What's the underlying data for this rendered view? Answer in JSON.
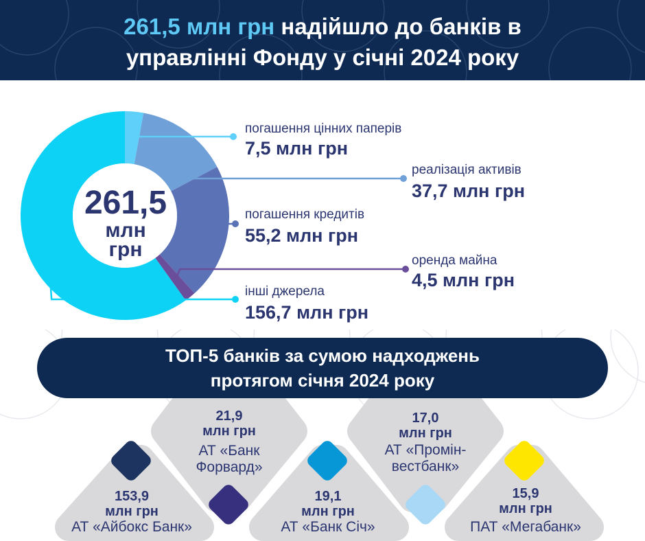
{
  "header": {
    "highlight": "261,5 млн грн",
    "title_rest_line1": "надійшло до банків в",
    "title_line2": "управлінні Фонду у січні 2024 року"
  },
  "center": {
    "value": "261,5",
    "unit_line1": "млн",
    "unit_line2": "грн"
  },
  "chart_data": {
    "type": "pie",
    "total": 261.5,
    "unit": "млн грн",
    "slices": [
      {
        "label": "погашення цінних паперів",
        "value": 7.5,
        "value_text": "7,5 млн грн",
        "color": "#5ed0fa"
      },
      {
        "label": "реалізація активів",
        "value": 37.7,
        "value_text": "37,7 млн грн",
        "color": "#6fa0d8"
      },
      {
        "label": "погашення кредитів",
        "value": 55.2,
        "value_text": "55,2 млн грн",
        "color": "#5c72b6"
      },
      {
        "label": "оренда майна",
        "value": 4.5,
        "value_text": "4,5 млн грн",
        "color": "#6a4e9b"
      },
      {
        "label": "інші джерела",
        "value": 156.7,
        "value_text": "156,7 млн грн",
        "color": "#0dd2f5"
      }
    ]
  },
  "banner": {
    "line1": "ТОП-5 банків за сумою надходжень",
    "line2": "протягом січня 2024 року"
  },
  "banks": [
    {
      "amount": "21,9",
      "unit": "млн грн",
      "name_line1": "АТ «Банк",
      "name_line2": "Форвард»"
    },
    {
      "amount": "17,0",
      "unit": "млн грн",
      "name_line1": "АТ «Промін-",
      "name_line2": "вестбанк»"
    },
    {
      "amount": "153,9",
      "unit": "млн грн",
      "name_line1": "АТ «Айбокс Банк»"
    },
    {
      "amount": "19,1",
      "unit": "млн грн",
      "name_line1": "АТ «Банк Січ»"
    },
    {
      "amount": "15,9",
      "unit": "млн грн",
      "name_line1": "ПАТ «Мегабанк»"
    }
  ],
  "colors": {
    "navy": "#0e2a52",
    "text": "#2b3570",
    "accent_light": "#5ec9f5",
    "tile_gray": "#d9d9dc",
    "marker_navy": "#1d3461",
    "marker_purple": "#37307f",
    "marker_blue": "#0897d6",
    "marker_light": "#a8d8f5",
    "marker_yellow": "#ffe600"
  }
}
